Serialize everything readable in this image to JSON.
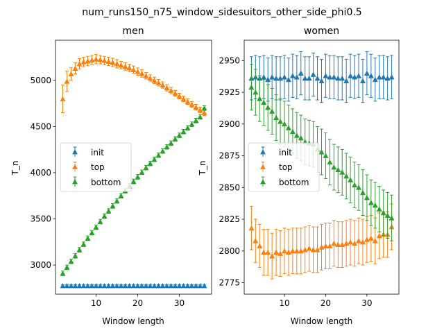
{
  "figure": {
    "title": "num_runs150_n75_window_sidesuitors_other_side_phi0.5"
  },
  "colors": {
    "init": "#1f77b4",
    "top": "#ff7f0e",
    "bottom": "#2ca02c"
  },
  "chart_data": [
    {
      "type": "line",
      "title": "men",
      "xlabel": "Window length",
      "ylabel": "T_n",
      "xlim": [
        0.25,
        37.75
      ],
      "ylim": [
        2685,
        5435
      ],
      "xticks": [
        10,
        20,
        30
      ],
      "yticks": [
        3000,
        3500,
        4000,
        4500,
        5000
      ],
      "grid": false,
      "legend": {
        "position": "center-left",
        "entries": [
          "init",
          "top",
          "bottom"
        ]
      },
      "x": [
        2,
        3,
        4,
        5,
        6,
        7,
        8,
        9,
        10,
        11,
        12,
        13,
        14,
        15,
        16,
        17,
        18,
        19,
        20,
        21,
        22,
        23,
        24,
        25,
        26,
        27,
        28,
        29,
        30,
        31,
        32,
        33,
        34,
        35,
        36
      ],
      "series": [
        {
          "name": "init",
          "marker": "triangle",
          "values": [
            2775,
            2775,
            2775,
            2775,
            2775,
            2775,
            2775,
            2775,
            2775,
            2775,
            2775,
            2775,
            2775,
            2775,
            2775,
            2775,
            2775,
            2775,
            2775,
            2775,
            2775,
            2775,
            2775,
            2775,
            2775,
            2775,
            2775,
            2775,
            2775,
            2775,
            2775,
            2775,
            2775,
            2775,
            2775
          ],
          "errors": [
            12,
            12,
            12,
            12,
            12,
            12,
            12,
            12,
            12,
            12,
            12,
            12,
            12,
            12,
            12,
            12,
            12,
            12,
            12,
            12,
            12,
            12,
            12,
            12,
            12,
            12,
            12,
            12,
            12,
            12,
            12,
            12,
            12,
            12,
            12
          ]
        },
        {
          "name": "top",
          "marker": "triangle",
          "values": [
            4800,
            4990,
            5070,
            5130,
            5180,
            5200,
            5210,
            5220,
            5230,
            5225,
            5215,
            5205,
            5195,
            5180,
            5165,
            5150,
            5135,
            5115,
            5095,
            5075,
            5050,
            5025,
            5000,
            4975,
            4950,
            4920,
            4890,
            4860,
            4830,
            4800,
            4770,
            4740,
            4710,
            4680,
            4650
          ],
          "errors": [
            150,
            110,
            70,
            60,
            55,
            50,
            50,
            50,
            50,
            45,
            45,
            45,
            45,
            45,
            40,
            40,
            40,
            40,
            40,
            40,
            35,
            35,
            35,
            35,
            35,
            35,
            35,
            30,
            30,
            30,
            30,
            30,
            30,
            30,
            30
          ]
        },
        {
          "name": "bottom",
          "marker": "triangle",
          "values": [
            2910,
            2975,
            3040,
            3100,
            3165,
            3225,
            3290,
            3350,
            3410,
            3470,
            3530,
            3585,
            3640,
            3695,
            3750,
            3805,
            3855,
            3905,
            3955,
            4005,
            4055,
            4100,
            4145,
            4190,
            4235,
            4280,
            4320,
            4365,
            4405,
            4445,
            4485,
            4525,
            4565,
            4605,
            4700
          ],
          "errors": [
            25,
            25,
            25,
            25,
            25,
            25,
            25,
            25,
            25,
            25,
            25,
            25,
            25,
            25,
            25,
            25,
            25,
            25,
            25,
            25,
            25,
            25,
            25,
            25,
            25,
            25,
            25,
            25,
            25,
            25,
            25,
            25,
            25,
            25,
            25
          ]
        }
      ]
    },
    {
      "type": "line",
      "title": "women",
      "xlabel": "Window length",
      "ylabel": "T_n",
      "xlim": [
        0.25,
        37.75
      ],
      "ylim": [
        2766,
        2966
      ],
      "xticks": [
        10,
        20,
        30
      ],
      "yticks": [
        2775,
        2800,
        2825,
        2850,
        2875,
        2900,
        2925,
        2950
      ],
      "grid": false,
      "legend": {
        "position": "center-left",
        "entries": [
          "init",
          "top",
          "bottom"
        ]
      },
      "x": [
        2,
        3,
        4,
        5,
        6,
        7,
        8,
        9,
        10,
        11,
        12,
        13,
        14,
        15,
        16,
        17,
        18,
        19,
        20,
        21,
        22,
        23,
        24,
        25,
        26,
        27,
        28,
        29,
        30,
        31,
        32,
        33,
        34,
        35,
        36
      ],
      "series": [
        {
          "name": "init",
          "marker": "triangle",
          "values": [
            2936,
            2937,
            2936,
            2937,
            2935,
            2937,
            2936,
            2936,
            2937,
            2935,
            2938,
            2937,
            2940,
            2936,
            2936,
            2939,
            2936,
            2934,
            2938,
            2937,
            2937,
            2936,
            2936,
            2934,
            2938,
            2937,
            2938,
            2934,
            2940,
            2938,
            2935,
            2937,
            2937,
            2936,
            2937
          ],
          "errors": [
            17,
            17,
            17,
            17,
            17,
            17,
            17,
            17,
            17,
            17,
            17,
            17,
            17,
            17,
            17,
            17,
            17,
            17,
            17,
            17,
            17,
            17,
            17,
            17,
            17,
            17,
            17,
            17,
            17,
            17,
            17,
            17,
            17,
            17,
            17
          ]
        },
        {
          "name": "top",
          "marker": "triangle",
          "values": [
            2818,
            2808,
            2804,
            2799,
            2799,
            2796,
            2799,
            2798,
            2800,
            2799,
            2800,
            2800,
            2800,
            2801,
            2802,
            2801,
            2801,
            2803,
            2804,
            2804,
            2806,
            2805,
            2805,
            2806,
            2807,
            2806,
            2808,
            2807,
            2809,
            2810,
            2808,
            2812,
            2813,
            2813,
            2819
          ],
          "errors": [
            17,
            17,
            17,
            18,
            18,
            18,
            18,
            18,
            18,
            18,
            18,
            18,
            18,
            18,
            18,
            18,
            18,
            18,
            18,
            18,
            18,
            18,
            18,
            18,
            18,
            18,
            18,
            18,
            18,
            18,
            18,
            18,
            18,
            18,
            18
          ]
        },
        {
          "name": "bottom",
          "marker": "triangle",
          "values": [
            2929,
            2925,
            2920,
            2917,
            2913,
            2910,
            2905,
            2902,
            2900,
            2897,
            2894,
            2891,
            2889,
            2886,
            2885,
            2884,
            2880,
            2878,
            2875,
            2870,
            2866,
            2864,
            2862,
            2859,
            2856,
            2852,
            2850,
            2846,
            2842,
            2838,
            2836,
            2833,
            2830,
            2828,
            2826
          ],
          "errors": [
            18,
            18,
            18,
            18,
            18,
            18,
            18,
            18,
            18,
            18,
            18,
            18,
            18,
            18,
            18,
            18,
            18,
            18,
            18,
            18,
            18,
            18,
            18,
            18,
            18,
            18,
            18,
            18,
            18,
            18,
            18,
            18,
            18,
            18,
            18
          ]
        }
      ]
    }
  ]
}
